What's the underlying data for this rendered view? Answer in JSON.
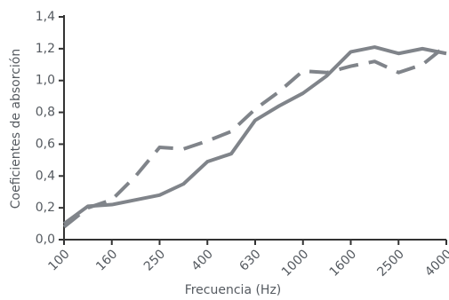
{
  "chart_data": {
    "type": "line",
    "ylabel": "Coeficientes de absorción",
    "xlabel": "Frecuencia (Hz)",
    "categories": [
      "100",
      null,
      "160",
      null,
      "250",
      null,
      "400",
      null,
      "630",
      null,
      "1000",
      null,
      "1600",
      null,
      "2500",
      null,
      "4000"
    ],
    "series": [
      {
        "color": "#80848a",
        "style": "solid",
        "values": [
          0.1,
          0.21,
          0.22,
          0.25,
          0.28,
          0.35,
          0.49,
          0.54,
          0.75,
          0.84,
          0.92,
          1.03,
          1.18,
          1.21,
          1.17,
          1.2,
          1.17
        ]
      },
      {
        "color": "#80848a",
        "style": "dashed",
        "values": [
          0.08,
          0.2,
          0.25,
          0.4,
          0.58,
          0.57,
          0.62,
          0.68,
          0.82,
          0.93,
          1.06,
          1.05,
          1.09,
          1.12,
          1.05,
          1.1,
          1.22
        ]
      }
    ],
    "ylim": [
      0,
      1.4
    ],
    "yticks": [
      {
        "value": 0,
        "label": "0,0"
      },
      {
        "value": 0.2,
        "label": "0,2"
      },
      {
        "value": 0.4,
        "label": "0,4"
      },
      {
        "value": 0.6,
        "label": "0,6"
      },
      {
        "value": 0.8,
        "label": "0,8"
      },
      {
        "value": 1.0,
        "label": "1,0"
      },
      {
        "value": 1.2,
        "label": "1,2"
      },
      {
        "value": 1.4,
        "label": "1,4"
      }
    ]
  }
}
